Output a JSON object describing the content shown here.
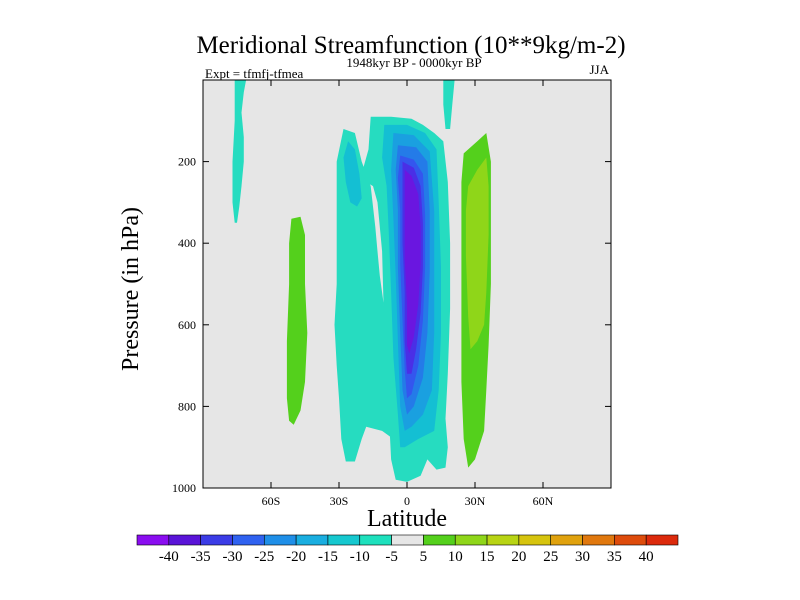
{
  "chart_data": {
    "type": "contour",
    "title": "Meridional Streamfunction (10**9kg/m-2)",
    "subtitle": "1948kyr BP - 0000kyr BP",
    "experiment": "Expt = tfmfj-tfmea",
    "season": "JJA",
    "xlabel": "Latitude",
    "ylabel": "Pressure (in hPa)",
    "xlim": [
      -90,
      90
    ],
    "ylim": [
      1000,
      0
    ],
    "x_ticks": [
      {
        "value": -60,
        "label": "60S"
      },
      {
        "value": -30,
        "label": "30S"
      },
      {
        "value": 0,
        "label": "0"
      },
      {
        "value": 30,
        "label": "30N"
      },
      {
        "value": 60,
        "label": "60N"
      }
    ],
    "y_ticks": [
      {
        "value": 200,
        "label": "200"
      },
      {
        "value": 400,
        "label": "400"
      },
      {
        "value": 600,
        "label": "600"
      },
      {
        "value": 800,
        "label": "800"
      },
      {
        "value": 1000,
        "label": "1000"
      }
    ],
    "background_color": "#e6e6e6",
    "levels": [
      -40,
      -35,
      -30,
      -25,
      -20,
      -15,
      -10,
      -5,
      5,
      10,
      15,
      20,
      25,
      30,
      35,
      40
    ],
    "colorbar_colors": [
      "#8a0df0",
      "#5a14d8",
      "#3b3ce6",
      "#2f62f0",
      "#1f8fe8",
      "#1aaee0",
      "#16c8cf",
      "#1ee0bd",
      "#e6e6e6",
      "#54d01c",
      "#8fd619",
      "#b8d414",
      "#d6c40e",
      "#e0a20e",
      "#e0780e",
      "#de4c0c",
      "#dc2a0c"
    ],
    "fill_colors": {
      "-40": "#8a0df0",
      "-35": "#6a16e0",
      "-30": "#4a2fe6",
      "-25": "#3456ee",
      "-20": "#247be8",
      "-15": "#1aa0e0",
      "-10": "#14bfd3",
      "-5": "#26dcc0",
      "5": "#54d01c",
      "10": "#8fd619"
    },
    "regions": [
      {
        "level": -5,
        "points": [
          [
            -76,
            0
          ],
          [
            -71,
            0
          ],
          [
            -72,
            30
          ],
          [
            -73,
            80
          ],
          [
            -72,
            140
          ],
          [
            -72,
            200
          ],
          [
            -73,
            260
          ],
          [
            -74,
            310
          ],
          [
            -75,
            350
          ],
          [
            -76,
            350
          ],
          [
            -77,
            300
          ],
          [
            -77,
            200
          ],
          [
            -76,
            100
          ]
        ]
      },
      {
        "level": 5,
        "points": [
          [
            -51,
            340
          ],
          [
            -47,
            335
          ],
          [
            -45,
            380
          ],
          [
            -45,
            500
          ],
          [
            -44,
            620
          ],
          [
            -45,
            740
          ],
          [
            -47,
            810
          ],
          [
            -50,
            845
          ],
          [
            -52,
            835
          ],
          [
            -53,
            780
          ],
          [
            -53,
            640
          ],
          [
            -52,
            500
          ],
          [
            -52,
            400
          ]
        ]
      },
      {
        "level": -5,
        "points": [
          [
            -28,
            120
          ],
          [
            -23,
            130
          ],
          [
            -20,
            200
          ],
          [
            -16,
            260
          ],
          [
            -14,
            360
          ],
          [
            -13,
            420
          ],
          [
            -12,
            480
          ],
          [
            -10,
            560
          ],
          [
            -8,
            640
          ],
          [
            -5,
            720
          ],
          [
            -3,
            770
          ],
          [
            -1,
            820
          ],
          [
            -2,
            860
          ],
          [
            -6,
            880
          ],
          [
            -11,
            860
          ],
          [
            -18,
            850
          ],
          [
            -20,
            880
          ],
          [
            -23,
            935
          ],
          [
            -27,
            935
          ],
          [
            -29,
            880
          ],
          [
            -30,
            780
          ],
          [
            -31,
            700
          ],
          [
            -32,
            600
          ],
          [
            -31,
            500
          ],
          [
            -31,
            400
          ],
          [
            -31,
            300
          ],
          [
            -31,
            200
          ]
        ]
      },
      {
        "level": -10,
        "points": [
          [
            -26,
            150
          ],
          [
            -23,
            170
          ],
          [
            -21,
            230
          ],
          [
            -20,
            290
          ],
          [
            -22,
            310
          ],
          [
            -25,
            300
          ],
          [
            -27,
            250
          ],
          [
            -28,
            190
          ]
        ]
      },
      {
        "level": -5,
        "points": [
          [
            -16,
            90
          ],
          [
            -7,
            90
          ],
          [
            2,
            95
          ],
          [
            7,
            110
          ],
          [
            12,
            130
          ],
          [
            16,
            150
          ],
          [
            18,
            250
          ],
          [
            19,
            400
          ],
          [
            19,
            560
          ],
          [
            18,
            720
          ],
          [
            17,
            830
          ],
          [
            18,
            900
          ],
          [
            17,
            950
          ],
          [
            13,
            955
          ],
          [
            9,
            930
          ],
          [
            6,
            970
          ],
          [
            0,
            985
          ],
          [
            -5,
            980
          ],
          [
            -7,
            930
          ],
          [
            -8,
            820
          ],
          [
            -10,
            620
          ],
          [
            -11,
            420
          ],
          [
            -13,
            300
          ],
          [
            -15,
            260
          ],
          [
            -18,
            250
          ],
          [
            -20,
            230
          ],
          [
            -17,
            170
          ]
        ]
      },
      {
        "level": -5,
        "points": [
          [
            16,
            0
          ],
          [
            21,
            0
          ],
          [
            20,
            60
          ],
          [
            19,
            120
          ],
          [
            17,
            120
          ],
          [
            16,
            60
          ]
        ]
      },
      {
        "level": -10,
        "points": [
          [
            -10,
            110
          ],
          [
            0,
            110
          ],
          [
            8,
            130
          ],
          [
            13,
            170
          ],
          [
            14,
            300
          ],
          [
            15,
            460
          ],
          [
            15,
            620
          ],
          [
            14,
            760
          ],
          [
            12,
            860
          ],
          [
            5,
            880
          ],
          [
            -1,
            900
          ],
          [
            -3,
            900
          ],
          [
            -4,
            820
          ],
          [
            -6,
            680
          ],
          [
            -7,
            520
          ],
          [
            -8,
            380
          ],
          [
            -9,
            260
          ],
          [
            -11,
            190
          ]
        ]
      },
      {
        "level": -15,
        "points": [
          [
            -6,
            130
          ],
          [
            3,
            135
          ],
          [
            10,
            175
          ],
          [
            12,
            320
          ],
          [
            12,
            480
          ],
          [
            12,
            620
          ],
          [
            11,
            760
          ],
          [
            7,
            820
          ],
          [
            2,
            850
          ],
          [
            -1,
            860
          ],
          [
            -3,
            800
          ],
          [
            -4,
            640
          ],
          [
            -5,
            480
          ],
          [
            -6,
            340
          ],
          [
            -7,
            220
          ]
        ]
      },
      {
        "level": -20,
        "points": [
          [
            -4,
            160
          ],
          [
            4,
            165
          ],
          [
            9,
            200
          ],
          [
            10,
            320
          ],
          [
            10,
            470
          ],
          [
            9,
            620
          ],
          [
            7,
            730
          ],
          [
            3,
            800
          ],
          [
            0,
            820
          ],
          [
            -2,
            760
          ],
          [
            -3,
            620
          ],
          [
            -4,
            460
          ],
          [
            -4,
            320
          ],
          [
            -5,
            220
          ]
        ]
      },
      {
        "level": -25,
        "points": [
          [
            -3,
            185
          ],
          [
            3,
            195
          ],
          [
            7,
            230
          ],
          [
            8,
            330
          ],
          [
            8,
            460
          ],
          [
            7,
            590
          ],
          [
            5,
            700
          ],
          [
            2,
            770
          ],
          [
            0,
            780
          ],
          [
            -1,
            710
          ],
          [
            -2,
            590
          ],
          [
            -3,
            450
          ],
          [
            -3,
            320
          ],
          [
            -4,
            240
          ]
        ]
      },
      {
        "level": -30,
        "points": [
          [
            -2,
            200
          ],
          [
            3,
            215
          ],
          [
            6,
            260
          ],
          [
            7,
            350
          ],
          [
            7,
            460
          ],
          [
            6,
            570
          ],
          [
            4,
            660
          ],
          [
            2,
            720
          ],
          [
            0,
            720
          ],
          [
            -1,
            640
          ],
          [
            -1,
            520
          ],
          [
            -2,
            400
          ],
          [
            -2,
            300
          ]
        ]
      },
      {
        "level": -35,
        "points": [
          [
            -1,
            220
          ],
          [
            2,
            235
          ],
          [
            5,
            280
          ],
          [
            6,
            360
          ],
          [
            6,
            450
          ],
          [
            5,
            550
          ],
          [
            3,
            630
          ],
          [
            1,
            670
          ],
          [
            0,
            650
          ],
          [
            0,
            550
          ],
          [
            -1,
            440
          ],
          [
            -1,
            330
          ]
        ]
      },
      {
        "level": 5,
        "points": [
          [
            25,
            180
          ],
          [
            31,
            150
          ],
          [
            35,
            130
          ],
          [
            37,
            200
          ],
          [
            37,
            340
          ],
          [
            37,
            500
          ],
          [
            36,
            650
          ],
          [
            35,
            760
          ],
          [
            34,
            860
          ],
          [
            30,
            930
          ],
          [
            27,
            950
          ],
          [
            25,
            880
          ],
          [
            24,
            740
          ],
          [
            24,
            560
          ],
          [
            24,
            380
          ],
          [
            24,
            250
          ]
        ]
      },
      {
        "level": 10,
        "points": [
          [
            27,
            260
          ],
          [
            31,
            220
          ],
          [
            35,
            190
          ],
          [
            36,
            260
          ],
          [
            36,
            380
          ],
          [
            35,
            520
          ],
          [
            34,
            600
          ],
          [
            31,
            640
          ],
          [
            28,
            660
          ],
          [
            27,
            580
          ],
          [
            26,
            430
          ],
          [
            26,
            320
          ]
        ]
      }
    ]
  }
}
